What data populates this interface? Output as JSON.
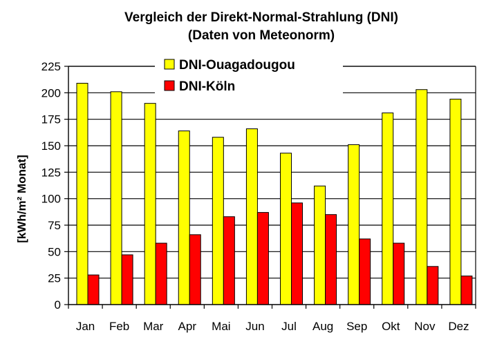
{
  "chart_data": {
    "type": "bar",
    "title": "Vergleich der Direkt-Normal-Strahlung (DNI)",
    "subtitle": "(Daten von Meteonorm)",
    "xlabel": "",
    "ylabel": "[kWh/m² Monat]",
    "ylim": [
      0,
      225
    ],
    "yticks": [
      "0",
      "25",
      "50",
      "75",
      "100",
      "125",
      "150",
      "175",
      "200",
      "225"
    ],
    "grid": true,
    "legend_position": "top-center",
    "categories": [
      "Jan",
      "Feb",
      "Mar",
      "Apr",
      "Mai",
      "Jun",
      "Jul",
      "Aug",
      "Sep",
      "Okt",
      "Nov",
      "Dez"
    ],
    "series": [
      {
        "name": "DNI-Ouagadougou",
        "color": "#FFFF00",
        "values": [
          209,
          201,
          190,
          164,
          158,
          166,
          143,
          112,
          151,
          181,
          203,
          194
        ]
      },
      {
        "name": "DNI-Köln",
        "color": "#FF0000",
        "values": [
          28,
          47,
          58,
          66,
          83,
          87,
          96,
          85,
          62,
          58,
          36,
          27
        ]
      }
    ]
  }
}
